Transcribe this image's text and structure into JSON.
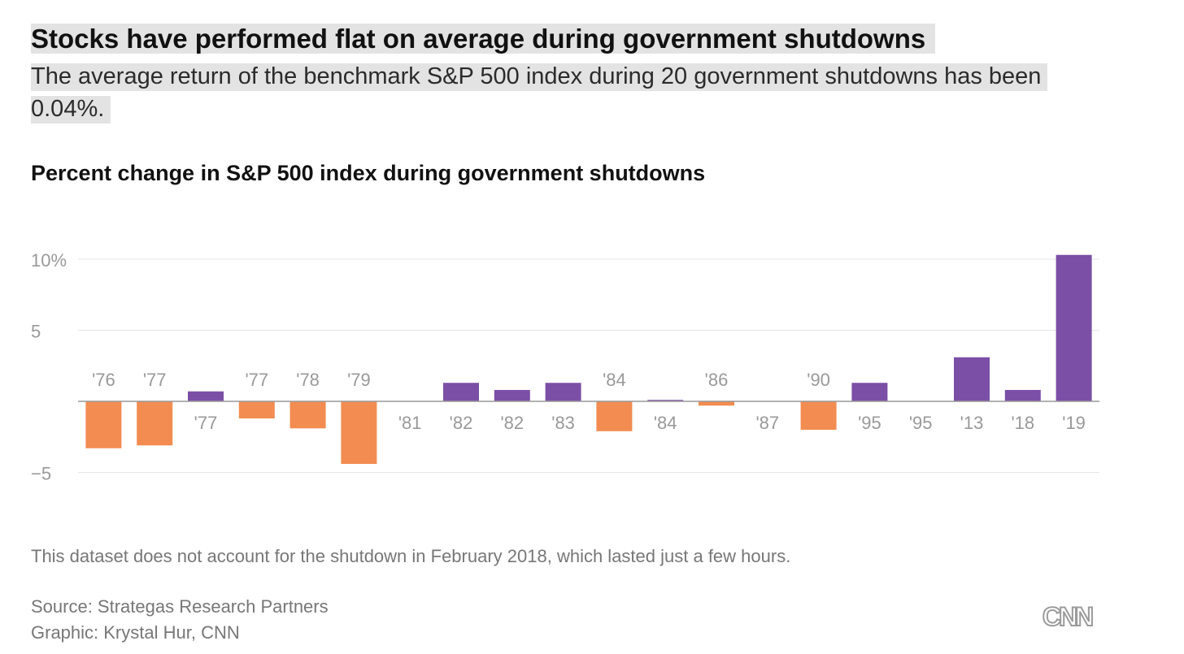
{
  "header": {
    "headline": "Stocks have performed flat on average during government shutdowns",
    "dek": "The average return of the benchmark S&P 500 index during 20 government shutdowns has been 0.04%."
  },
  "chart_data": {
    "type": "bar",
    "title": "Percent change in S&P 500 index during government shutdowns",
    "xlabel": "",
    "ylabel": "",
    "ylim": [
      -7,
      11
    ],
    "grid": true,
    "y_ticks": [
      {
        "value": 10,
        "label": "10%"
      },
      {
        "value": 5,
        "label": "5"
      },
      {
        "value": -5,
        "label": "−5"
      }
    ],
    "categories": [
      "'76",
      "'77",
      "'77",
      "'77",
      "'78",
      "'79",
      "'81",
      "'82",
      "'82",
      "'83",
      "'84",
      "'84",
      "'86",
      "'87",
      "'90",
      "'95",
      "'95",
      "'13",
      "'18",
      "'19"
    ],
    "values": [
      -3.3,
      -3.1,
      0.7,
      -1.2,
      -1.9,
      -4.4,
      0.0,
      1.3,
      0.8,
      1.3,
      -2.1,
      0.1,
      -0.3,
      0.0,
      -2.0,
      1.3,
      0.0,
      3.1,
      0.8,
      10.3
    ],
    "colors": {
      "positive": "#7b4fa6",
      "negative": "#f28c51",
      "gridline": "#e6e6e6",
      "baseline": "#999999",
      "tick_text": "#999999"
    }
  },
  "footer": {
    "note": "This dataset does not account for the shutdown in February 2018, which lasted just a few hours.",
    "source": "Source: Strategas Research Partners",
    "credit": "Graphic: Krystal Hur, CNN",
    "logo_text": "CNN"
  }
}
